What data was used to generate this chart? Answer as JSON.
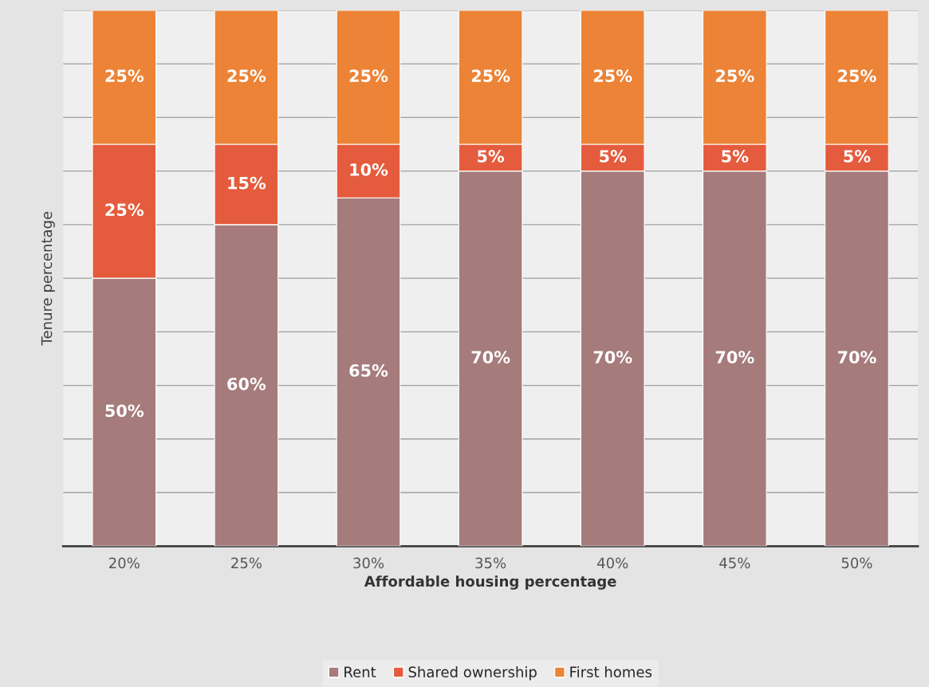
{
  "chart_data": {
    "type": "bar",
    "stacked": true,
    "xlabel": "Affordable housing percentage",
    "ylabel": "Tenure percentage",
    "categories": [
      "20%",
      "25%",
      "30%",
      "35%",
      "40%",
      "45%",
      "50%"
    ],
    "series": [
      {
        "name": "Rent",
        "color": "#a67b7b",
        "values": [
          50,
          60,
          65,
          70,
          70,
          70,
          70
        ],
        "value_labels": [
          "50%",
          "60%",
          "65%",
          "70%",
          "70%",
          "70%",
          "70%"
        ]
      },
      {
        "name": "Shared ownership",
        "color": "#e45c3d",
        "values": [
          25,
          15,
          10,
          5,
          5,
          5,
          5
        ],
        "value_labels": [
          "25%",
          "15%",
          "10%",
          "5%",
          "5%",
          "5%",
          "5%"
        ]
      },
      {
        "name": "First homes",
        "color": "#ec8336",
        "values": [
          25,
          25,
          25,
          25,
          25,
          25,
          25
        ],
        "value_labels": [
          "25%",
          "25%",
          "25%",
          "25%",
          "25%",
          "25%",
          "25%"
        ]
      }
    ],
    "ylim": [
      0,
      100
    ],
    "yticks": [
      {
        "value": 0,
        "label": null
      },
      {
        "value": 10,
        "label": null
      },
      {
        "value": 20,
        "label": null
      },
      {
        "value": 30,
        "label": null
      },
      {
        "value": 40,
        "label": null
      },
      {
        "value": 50,
        "label": null
      },
      {
        "value": 60,
        "label": null
      },
      {
        "value": 70,
        "label": null
      },
      {
        "value": 80,
        "label": null
      },
      {
        "value": 90,
        "label": null
      },
      {
        "value": 100,
        "label": null
      }
    ],
    "grid": "y",
    "legend": "bottom",
    "tick_labels": "x"
  }
}
